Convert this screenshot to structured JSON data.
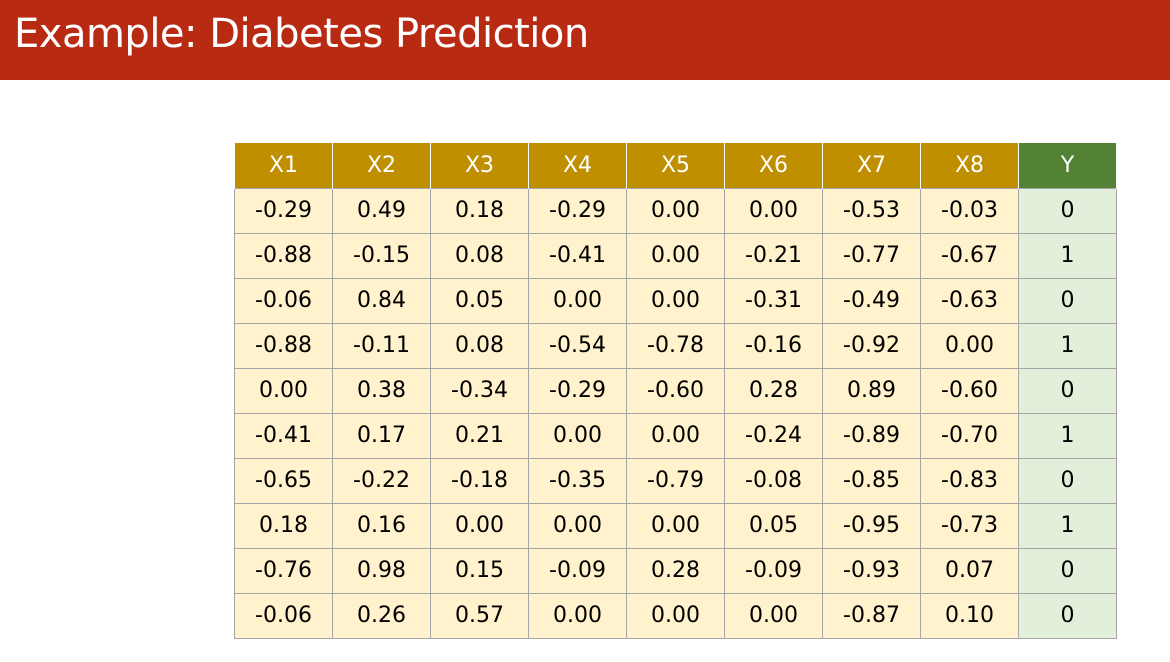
{
  "title": "Example: Diabetes Prediction",
  "colors": {
    "title_bar": "#b82a12",
    "feature_header": "#bf8f00",
    "label_header": "#548235",
    "feature_cell": "#fff2cc",
    "label_cell": "#e2efda"
  },
  "table": {
    "headers": [
      "X1",
      "X2",
      "X3",
      "X4",
      "X5",
      "X6",
      "X7",
      "X8",
      "Y"
    ],
    "rows": [
      [
        "-0.29",
        "0.49",
        "0.18",
        "-0.29",
        "0.00",
        "0.00",
        "-0.53",
        "-0.03",
        "0"
      ],
      [
        "-0.88",
        "-0.15",
        "0.08",
        "-0.41",
        "0.00",
        "-0.21",
        "-0.77",
        "-0.67",
        "1"
      ],
      [
        "-0.06",
        "0.84",
        "0.05",
        "0.00",
        "0.00",
        "-0.31",
        "-0.49",
        "-0.63",
        "0"
      ],
      [
        "-0.88",
        "-0.11",
        "0.08",
        "-0.54",
        "-0.78",
        "-0.16",
        "-0.92",
        "0.00",
        "1"
      ],
      [
        "0.00",
        "0.38",
        "-0.34",
        "-0.29",
        "-0.60",
        "0.28",
        "0.89",
        "-0.60",
        "0"
      ],
      [
        "-0.41",
        "0.17",
        "0.21",
        "0.00",
        "0.00",
        "-0.24",
        "-0.89",
        "-0.70",
        "1"
      ],
      [
        "-0.65",
        "-0.22",
        "-0.18",
        "-0.35",
        "-0.79",
        "-0.08",
        "-0.85",
        "-0.83",
        "0"
      ],
      [
        "0.18",
        "0.16",
        "0.00",
        "0.00",
        "0.00",
        "0.05",
        "-0.95",
        "-0.73",
        "1"
      ],
      [
        "-0.76",
        "0.98",
        "0.15",
        "-0.09",
        "0.28",
        "-0.09",
        "-0.93",
        "0.07",
        "0"
      ],
      [
        "-0.06",
        "0.26",
        "0.57",
        "0.00",
        "0.00",
        "0.00",
        "-0.87",
        "0.10",
        "0"
      ]
    ]
  }
}
